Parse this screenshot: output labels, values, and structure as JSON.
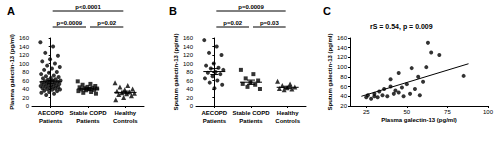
{
  "chart_data": [
    {
      "type": "scatter",
      "title": "A",
      "ylabel": "Plasma galectin-13 (pg/ml)",
      "color": "#000000",
      "ylim": [
        0,
        160
      ],
      "yticks": [
        0,
        20,
        40,
        60,
        80,
        100,
        120,
        140,
        160
      ],
      "groups": [
        {
          "name": "AECOPD Patients",
          "marker": "circle",
          "mean": 57,
          "sem": 3.5,
          "values": [
            150,
            140,
            125,
            118,
            110,
            105,
            100,
            95,
            92,
            88,
            85,
            80,
            78,
            75,
            72,
            70,
            68,
            66,
            65,
            63,
            62,
            60,
            60,
            58,
            57,
            56,
            55,
            54,
            53,
            52,
            50,
            50,
            49,
            48,
            47,
            46,
            45,
            44,
            43,
            42,
            41,
            40,
            39,
            38,
            36,
            35,
            33,
            31,
            29,
            26
          ]
        },
        {
          "name": "Stable COPD Patients",
          "marker": "rect",
          "mean": 40,
          "sem": 2.5,
          "values": [
            58,
            52,
            50,
            47,
            45,
            44,
            43,
            42,
            41,
            40,
            39,
            38,
            37,
            35,
            33,
            31,
            29
          ]
        },
        {
          "name": "Healthy Controls",
          "marker": "triangle",
          "mean": 32,
          "sem": 3,
          "values": [
            55,
            48,
            45,
            40,
            38,
            35,
            33,
            31,
            30,
            29,
            27,
            24,
            20,
            15
          ]
        }
      ],
      "comparisons": [
        {
          "groups": [
            0,
            2
          ],
          "label": "p<0.0001"
        },
        {
          "groups": [
            0,
            1
          ],
          "label": "p=0.0009"
        },
        {
          "groups": [
            1,
            2
          ],
          "label": "p=0.02"
        }
      ]
    },
    {
      "type": "scatter",
      "title": "B",
      "ylabel": "Sputum galectin-13 (pg/ml)",
      "color": "#000000",
      "ylim": [
        0,
        160
      ],
      "yticks": [
        0,
        20,
        40,
        60,
        80,
        100,
        120,
        140,
        160
      ],
      "groups": [
        {
          "name": "AECOPD Patients",
          "marker": "circle",
          "mean": 81,
          "sem": 7,
          "values": [
            155,
            140,
            125,
            120,
            100,
            95,
            90,
            88,
            85,
            80,
            78,
            75,
            70,
            65,
            60,
            55,
            50,
            42
          ]
        },
        {
          "name": "Stable COPD Patients",
          "marker": "rect",
          "mean": 56,
          "sem": 5,
          "values": [
            85,
            75,
            65,
            60,
            55,
            52,
            50,
            45,
            40
          ]
        },
        {
          "name": "Healthy Controls",
          "marker": "triangle",
          "mean": 44,
          "sem": 2.5,
          "values": [
            58,
            52,
            48,
            45,
            43,
            41,
            40,
            38
          ]
        }
      ],
      "comparisons": [
        {
          "groups": [
            0,
            2
          ],
          "label": "p=0.0009"
        },
        {
          "groups": [
            0,
            1
          ],
          "label": "p=0.02"
        },
        {
          "groups": [
            1,
            2
          ],
          "label": "p=0.03"
        }
      ]
    },
    {
      "type": "scatter",
      "title": "C",
      "xlabel": "Plasma galectin-13 (pg/ml)",
      "ylabel": "Sputum galectin-13 (pg/ml)",
      "color": "#000000",
      "marker": "circle",
      "xlim": [
        15,
        100
      ],
      "xticks": [
        25,
        50,
        75,
        100
      ],
      "ylim": [
        20,
        160
      ],
      "yticks": [
        20,
        40,
        60,
        80,
        100,
        120,
        140,
        160
      ],
      "x": [
        25,
        26,
        28,
        30,
        30,
        32,
        33,
        35,
        36,
        38,
        40,
        40,
        42,
        43,
        45,
        45,
        47,
        48,
        50,
        52,
        53,
        55,
        57,
        58,
        60,
        62,
        63,
        65,
        70,
        85
      ],
      "y": [
        38,
        42,
        35,
        40,
        45,
        38,
        50,
        42,
        55,
        40,
        60,
        75,
        45,
        52,
        48,
        88,
        58,
        40,
        65,
        45,
        98,
        55,
        80,
        42,
        70,
        100,
        150,
        130,
        125,
        82
      ],
      "trend": {
        "x": [
          22,
          88
        ],
        "y": [
          40,
          107
        ]
      },
      "annotations": [
        "rS = 0.54, p = 0.009"
      ]
    }
  ]
}
